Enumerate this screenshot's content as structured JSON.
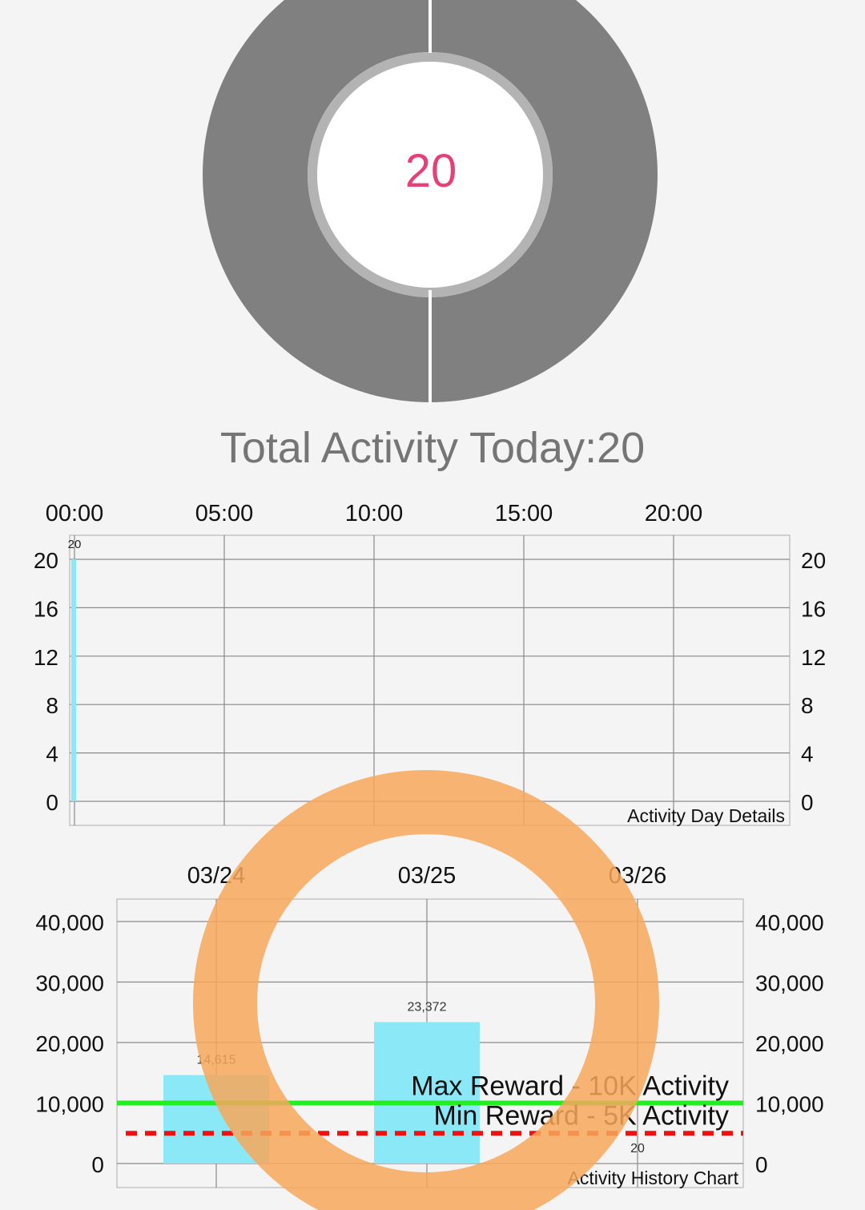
{
  "summary": {
    "center_value": "20",
    "total_label": "Total Activity Today:20"
  },
  "colors": {
    "donut": "#808080",
    "donut_inner_ring": "#b3b3b3",
    "center_text": "#e83e79",
    "bar": "#8be8f7",
    "max_line": "#22ee22",
    "min_line": "#ee1111",
    "touch_ring": "#f7a75a"
  },
  "chart_data": [
    {
      "type": "bar",
      "title": "Activity Day Details",
      "x_ticks": [
        "00:00",
        "05:00",
        "10:00",
        "15:00",
        "20:00"
      ],
      "y_ticks": [
        "0",
        "4",
        "8",
        "12",
        "16",
        "20"
      ],
      "ylim": [
        0,
        20
      ],
      "xlim_hours": [
        0,
        24
      ],
      "grid": true,
      "series": [
        {
          "values": [
            {
              "hour": 0,
              "value": 20,
              "label": "20"
            }
          ]
        }
      ]
    },
    {
      "type": "bar",
      "title": "Activity History Chart",
      "categories": [
        "03/24",
        "03/25",
        "03/26"
      ],
      "values": [
        14615,
        23372,
        20
      ],
      "value_labels": [
        "14,615",
        "23,372",
        "20"
      ],
      "y_ticks": [
        "0",
        "10,000",
        "20,000",
        "30,000",
        "40,000"
      ],
      "ylim": [
        0,
        40000
      ],
      "grid": true,
      "reference_lines": [
        {
          "label": "Max Reward - 10K Activity",
          "value": 10000,
          "style": "solid",
          "color": "#22ee22"
        },
        {
          "label": "Min Reward - 5K Activity",
          "value": 5000,
          "style": "dashed",
          "color": "#ee1111"
        }
      ]
    }
  ]
}
